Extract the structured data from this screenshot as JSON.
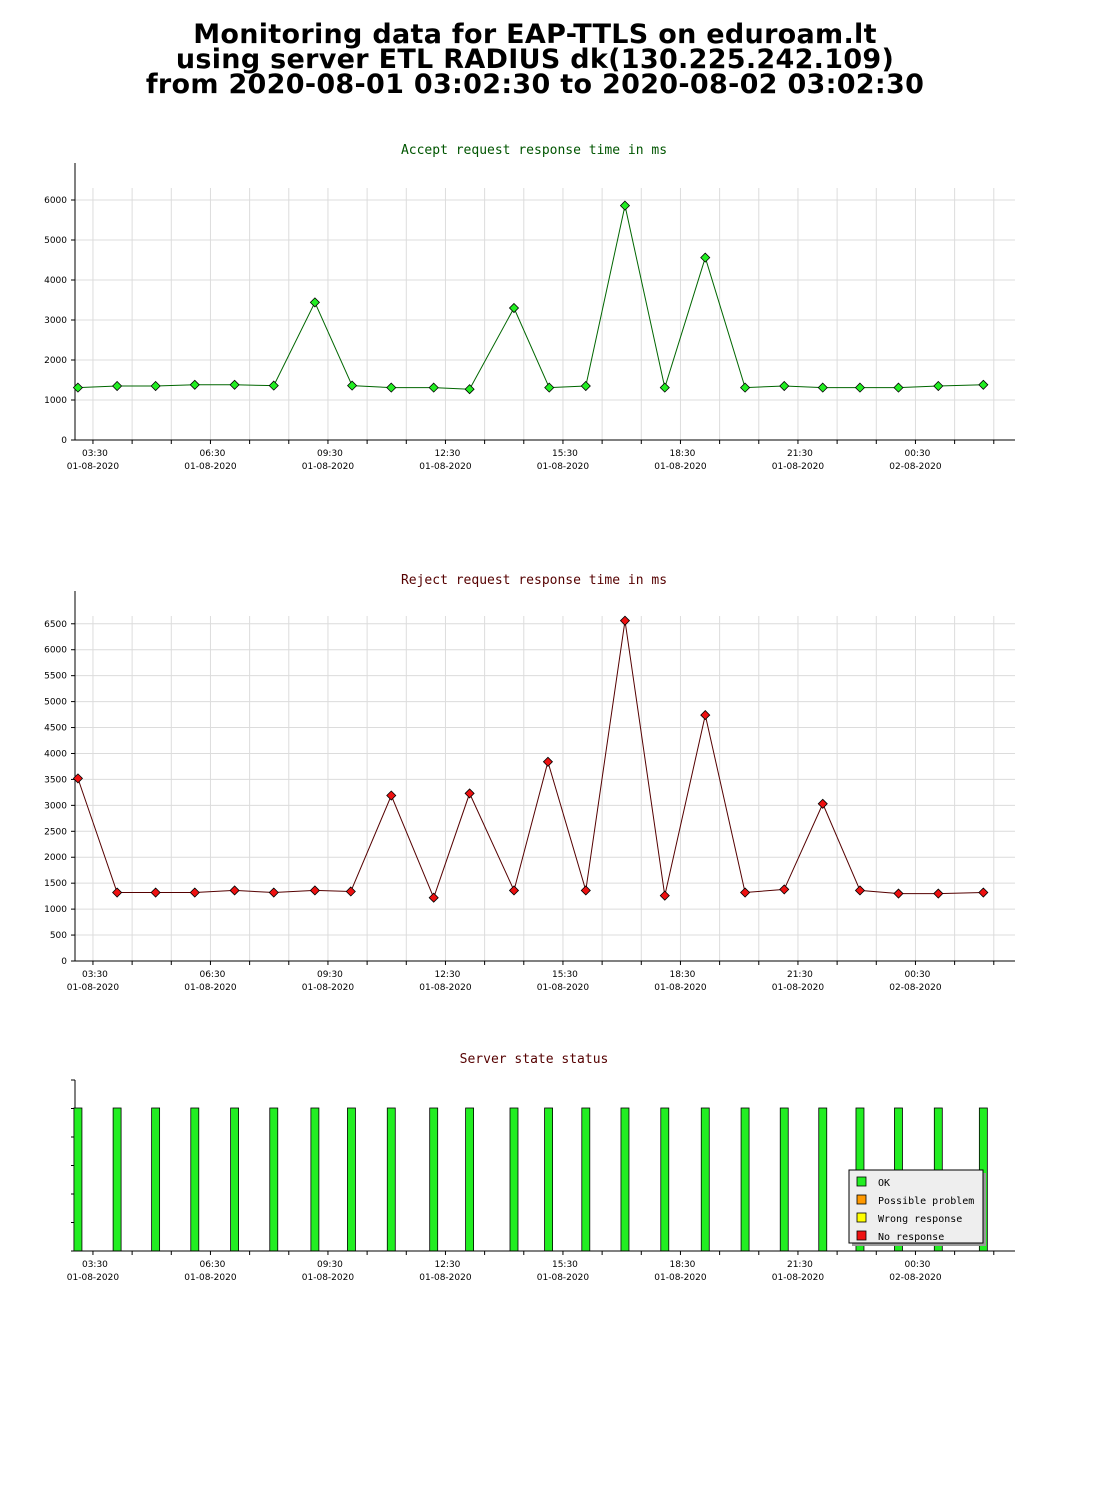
{
  "header": {
    "line1": "Monitoring data for EAP-TTLS on eduroam.lt",
    "line2": "using server ETL RADIUS dk(130.225.242.109)",
    "line3": "from 2020-08-01 03:02:30 to 2020-08-02 03:02:30"
  },
  "chart_data": [
    {
      "type": "line",
      "title": "Accept request response time in ms",
      "title_color": "#005500",
      "line_color": "#006600",
      "marker_color": "#22ee22",
      "ylim": [
        0,
        6300
      ],
      "yticks": [
        0,
        1000,
        2000,
        3000,
        4000,
        5000,
        6000
      ],
      "grid": true,
      "xticks": [
        {
          "time": "03:30",
          "date": "01-08-2020"
        },
        {
          "time": "06:30",
          "date": "01-08-2020"
        },
        {
          "time": "09:30",
          "date": "01-08-2020"
        },
        {
          "time": "12:30",
          "date": "01-08-2020"
        },
        {
          "time": "15:30",
          "date": "01-08-2020"
        },
        {
          "time": "18:30",
          "date": "01-08-2020"
        },
        {
          "time": "21:30",
          "date": "01-08-2020"
        },
        {
          "time": "00:30",
          "date": "02-08-2020"
        }
      ],
      "x": [
        "03:07",
        "04:07",
        "05:06",
        "06:06",
        "07:07",
        "08:07",
        "09:10",
        "10:07",
        "11:07",
        "12:12",
        "13:07",
        "14:15",
        "15:09",
        "16:05",
        "17:05",
        "18:06",
        "19:08",
        "20:09",
        "21:09",
        "22:08",
        "23:05",
        "00:04",
        "01:05",
        "02:14"
      ],
      "values": [
        1310,
        1350,
        1350,
        1380,
        1380,
        1360,
        3440,
        1360,
        1310,
        1310,
        1270,
        3300,
        1310,
        1350,
        5860,
        1310,
        4560,
        1310,
        1350,
        1310,
        1310,
        1310,
        1350,
        1380
      ]
    },
    {
      "type": "line",
      "title": "Reject request response time in ms",
      "title_color": "#550000",
      "line_color": "#550000",
      "marker_color": "#ee1111",
      "ylim": [
        0,
        6650
      ],
      "yticks": [
        0,
        500,
        1000,
        1500,
        2000,
        2500,
        3000,
        3500,
        4000,
        4500,
        5000,
        5500,
        6000,
        6500
      ],
      "grid": true,
      "xticks": [
        {
          "time": "03:30",
          "date": "01-08-2020"
        },
        {
          "time": "06:30",
          "date": "01-08-2020"
        },
        {
          "time": "09:30",
          "date": "01-08-2020"
        },
        {
          "time": "12:30",
          "date": "01-08-2020"
        },
        {
          "time": "15:30",
          "date": "01-08-2020"
        },
        {
          "time": "18:30",
          "date": "01-08-2020"
        },
        {
          "time": "21:30",
          "date": "01-08-2020"
        },
        {
          "time": "00:30",
          "date": "02-08-2020"
        }
      ],
      "x": [
        "03:07",
        "04:07",
        "05:06",
        "06:06",
        "07:07",
        "08:07",
        "09:10",
        "10:05",
        "11:07",
        "12:12",
        "13:07",
        "14:15",
        "15:07",
        "16:05",
        "17:05",
        "18:06",
        "19:08",
        "20:09",
        "21:09",
        "22:08",
        "23:05",
        "00:04",
        "01:05",
        "02:14"
      ],
      "values": [
        3520,
        1320,
        1320,
        1320,
        1360,
        1320,
        1360,
        1340,
        3190,
        1220,
        3230,
        1360,
        3840,
        1360,
        6560,
        1260,
        4740,
        1320,
        1380,
        3030,
        1360,
        1300,
        1300,
        1320
      ]
    },
    {
      "type": "bar",
      "title": "Server state status",
      "title_color": "#550000",
      "xticks": [
        {
          "time": "03:30",
          "date": "01-08-2020"
        },
        {
          "time": "06:30",
          "date": "01-08-2020"
        },
        {
          "time": "09:30",
          "date": "01-08-2020"
        },
        {
          "time": "12:30",
          "date": "01-08-2020"
        },
        {
          "time": "15:30",
          "date": "01-08-2020"
        },
        {
          "time": "18:30",
          "date": "01-08-2020"
        },
        {
          "time": "21:30",
          "date": "01-08-2020"
        },
        {
          "time": "00:30",
          "date": "02-08-2020"
        }
      ],
      "x": [
        "03:07",
        "04:07",
        "05:06",
        "06:06",
        "07:07",
        "08:07",
        "09:10",
        "10:06",
        "11:07",
        "12:12",
        "13:07",
        "14:15",
        "15:08",
        "16:05",
        "17:05",
        "18:06",
        "19:08",
        "20:09",
        "21:09",
        "22:08",
        "23:05",
        "00:04",
        "01:05",
        "02:14"
      ],
      "states": [
        "OK",
        "OK",
        "OK",
        "OK",
        "OK",
        "OK",
        "OK",
        "OK",
        "OK",
        "OK",
        "OK",
        "OK",
        "OK",
        "OK",
        "OK",
        "OK",
        "OK",
        "OK",
        "OK",
        "OK",
        "OK",
        "OK",
        "OK",
        "OK"
      ],
      "legend": [
        {
          "label": "OK",
          "color": "#22ee22"
        },
        {
          "label": "Possible problem",
          "color": "#ff9900"
        },
        {
          "label": "Wrong response",
          "color": "#ffff00"
        },
        {
          "label": "No response",
          "color": "#ee1111"
        }
      ]
    }
  ]
}
